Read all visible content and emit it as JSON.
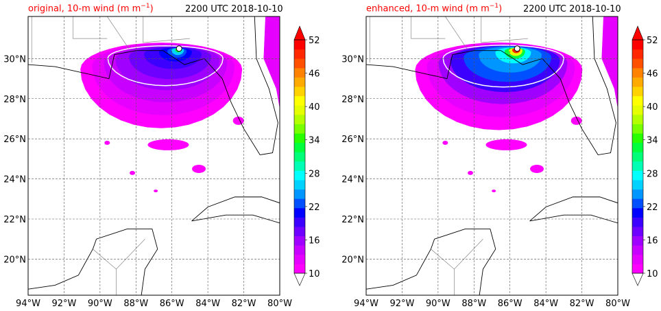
{
  "panels": [
    {
      "title_left": "original, 10-m wind (m m",
      "title_sup": "−1",
      "title_close": ")",
      "title_right": "2200 UTC 2018-10-10"
    },
    {
      "title_left": "enhanced, 10-m wind (m m",
      "title_sup": "−1",
      "title_close": ")",
      "title_right": "2200 UTC 2018-10-10"
    }
  ],
  "map": {
    "lon_labels": [
      "94°W",
      "92°W",
      "90°W",
      "88°W",
      "86°W",
      "84°W",
      "82°W",
      "80°W"
    ],
    "lat_labels": [
      "30°N",
      "28°N",
      "26°N",
      "24°N",
      "22°N",
      "20°N"
    ],
    "lon_range": [
      -94,
      -80
    ],
    "lat_range": [
      18.2,
      32.1
    ]
  },
  "colorbar": {
    "tick_labels": [
      "52",
      "46",
      "40",
      "34",
      "28",
      "22",
      "16",
      "10"
    ],
    "colors": [
      "#ff00ff",
      "#e600ff",
      "#c800ff",
      "#a000ff",
      "#6e00ff",
      "#3c00ff",
      "#0000ff",
      "#0050ff",
      "#0096ff",
      "#00d2ff",
      "#00ffff",
      "#00ffb4",
      "#00ff78",
      "#00ff3c",
      "#28ff00",
      "#78ff00",
      "#b4ff00",
      "#e6ff00",
      "#ffff00",
      "#ffd200",
      "#ffaa00",
      "#ff8200",
      "#ff5000",
      "#ff2800",
      "#ff0000"
    ],
    "min": 10,
    "max": 52,
    "extend": "both"
  }
}
